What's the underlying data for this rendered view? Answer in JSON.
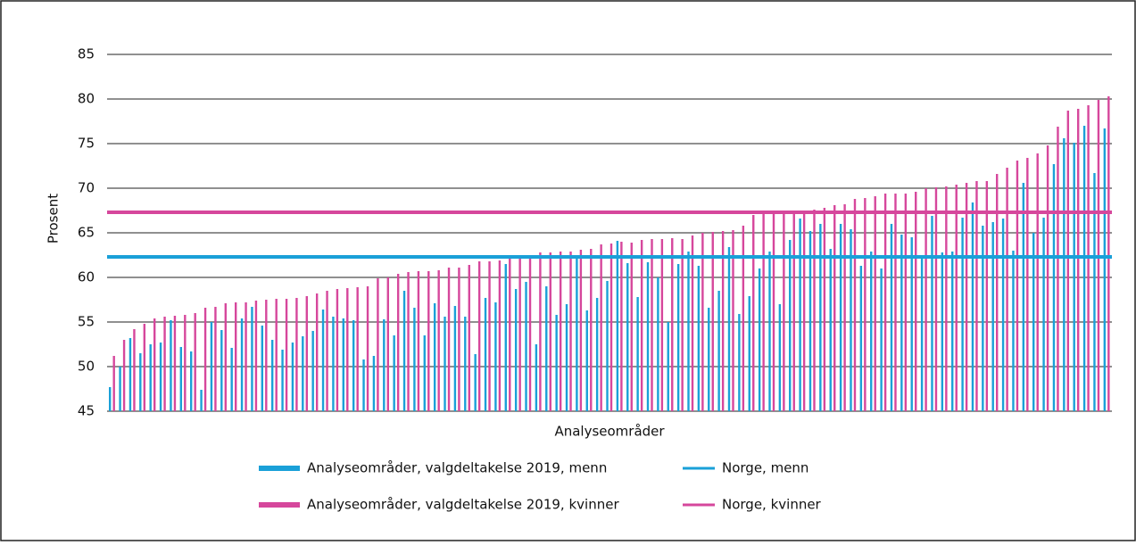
{
  "chart_data": {
    "type": "bar",
    "x_label": "Analyseområder",
    "y_label": "Prosent",
    "categories": [
      null,
      null,
      null,
      null,
      null,
      null,
      null,
      null,
      null,
      null,
      null,
      null,
      null,
      null,
      null,
      null,
      null,
      null,
      null,
      null,
      null,
      null,
      null,
      null,
      null,
      null,
      null,
      null,
      null,
      null,
      null,
      null,
      null,
      null,
      null,
      null,
      null,
      null,
      null,
      null,
      null,
      null,
      null,
      null,
      null,
      null,
      null,
      null,
      null,
      null,
      null,
      null,
      null,
      null,
      null,
      null,
      null,
      null,
      null,
      null,
      null,
      null,
      null,
      null,
      null,
      null,
      null,
      null,
      null,
      null,
      null,
      null,
      null,
      null,
      null,
      null,
      null,
      null,
      null,
      null,
      null,
      null,
      null,
      null,
      null,
      null,
      null,
      null,
      null,
      null,
      null,
      null,
      null,
      null,
      null,
      null,
      null,
      null,
      null
    ],
    "series": [
      {
        "name": "Analyseområder, valgdeltakelse 2019, menn",
        "color": "#1aa0d8",
        "kind": "bar",
        "values": [
          47.7,
          50.0,
          53.2,
          51.5,
          52.5,
          52.7,
          55.2,
          52.2,
          51.7,
          47.4,
          55.0,
          54.1,
          52.1,
          55.4,
          56.7,
          54.6,
          53.0,
          51.9,
          52.7,
          53.4,
          54.0,
          56.4,
          55.6,
          55.4,
          55.2,
          50.8,
          51.2,
          55.3,
          53.5,
          58.5,
          56.6,
          53.5,
          57.1,
          55.6,
          56.8,
          55.6,
          51.4,
          57.7,
          57.2,
          61.5,
          58.7,
          59.5,
          52.5,
          59.0,
          55.8,
          57.0,
          62.2,
          56.3,
          57.7,
          59.6,
          64.1,
          61.6,
          57.8,
          61.7,
          60.0,
          55.0,
          61.5,
          62.9,
          61.3,
          56.6,
          58.5,
          63.4,
          55.9,
          57.9,
          61.0,
          62.9,
          57.0,
          64.2,
          66.6,
          65.2,
          66.0,
          63.2,
          66.0,
          65.4,
          61.3,
          62.9,
          61.0,
          66.0,
          64.8,
          64.5,
          62.2,
          66.9,
          62.8,
          62.9,
          66.7,
          68.4,
          65.8,
          66.2,
          66.6,
          63.0,
          70.6,
          65.0,
          66.7,
          72.7,
          75.6,
          75.1,
          77.0,
          71.7,
          76.7
        ]
      },
      {
        "name": "Analyseområder, valgdeltakelse 2019, kvinner",
        "color": "#d6479c",
        "kind": "bar",
        "values": [
          51.2,
          53.0,
          54.2,
          54.8,
          55.4,
          55.6,
          55.7,
          55.8,
          56.0,
          56.6,
          56.7,
          57.1,
          57.2,
          57.2,
          57.4,
          57.5,
          57.6,
          57.6,
          57.7,
          57.9,
          58.2,
          58.5,
          58.7,
          58.8,
          58.9,
          59.0,
          59.9,
          60.0,
          60.4,
          60.6,
          60.7,
          60.7,
          60.8,
          61.1,
          61.1,
          61.4,
          61.8,
          61.8,
          61.9,
          62.1,
          62.4,
          62.5,
          62.8,
          62.8,
          62.9,
          62.9,
          63.1,
          63.2,
          63.7,
          63.8,
          64.0,
          63.9,
          64.2,
          64.3,
          64.3,
          64.4,
          64.3,
          64.7,
          65.0,
          65.1,
          65.2,
          65.3,
          65.8,
          67.0,
          67.1,
          67.2,
          67.2,
          67.2,
          67.5,
          67.6,
          67.8,
          68.1,
          68.2,
          68.8,
          68.9,
          69.1,
          69.4,
          69.4,
          69.4,
          69.6,
          70.0,
          70.1,
          70.2,
          70.4,
          70.6,
          70.8,
          70.8,
          71.6,
          72.3,
          73.1,
          73.4,
          73.9,
          74.8,
          76.9,
          78.7,
          78.9,
          79.3,
          79.9,
          80.3
        ]
      },
      {
        "name": "Norge, menn",
        "color": "#1aa0d8",
        "kind": "line",
        "value": 62.3
      },
      {
        "name": "Norge, kvinner",
        "color": "#d6479c",
        "kind": "line",
        "value": 67.3
      }
    ],
    "ylim": [
      45,
      85
    ],
    "yticks": [
      45,
      50,
      55,
      60,
      65,
      70,
      75,
      80,
      85
    ],
    "grid": true
  }
}
